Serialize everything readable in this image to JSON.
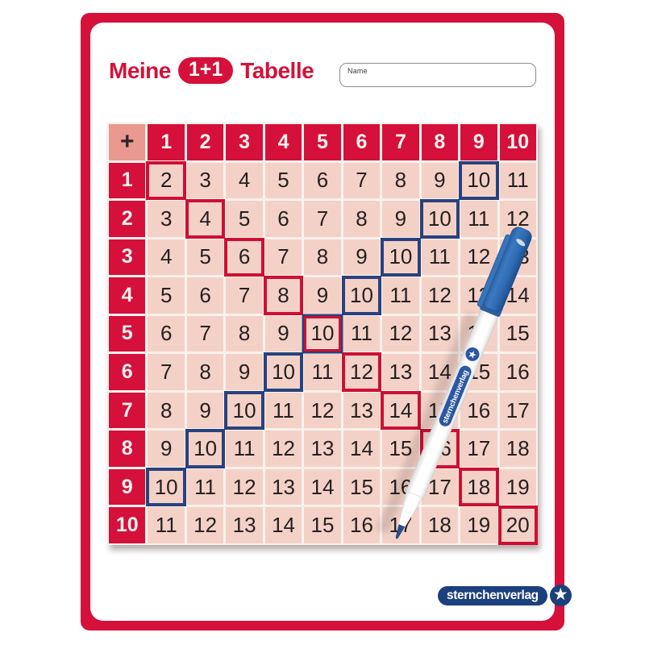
{
  "title": {
    "prefix": "Meine",
    "badge": "1+1",
    "suffix": "Tabelle"
  },
  "name_field": {
    "label": "Name",
    "value": ""
  },
  "table": {
    "operator": "+",
    "col_headers": [
      "1",
      "2",
      "3",
      "4",
      "5",
      "6",
      "7",
      "8",
      "9",
      "10"
    ],
    "row_headers": [
      "1",
      "2",
      "3",
      "4",
      "5",
      "6",
      "7",
      "8",
      "9",
      "10"
    ],
    "rows": [
      [
        2,
        3,
        4,
        5,
        6,
        7,
        8,
        9,
        10,
        11
      ],
      [
        3,
        4,
        5,
        6,
        7,
        8,
        9,
        10,
        11,
        12
      ],
      [
        4,
        5,
        6,
        7,
        8,
        9,
        10,
        11,
        12,
        13
      ],
      [
        5,
        6,
        7,
        8,
        9,
        10,
        11,
        12,
        13,
        14
      ],
      [
        6,
        7,
        8,
        9,
        10,
        11,
        12,
        13,
        14,
        15
      ],
      [
        7,
        8,
        9,
        10,
        11,
        12,
        13,
        14,
        15,
        16
      ],
      [
        8,
        9,
        10,
        11,
        12,
        13,
        14,
        15,
        16,
        17
      ],
      [
        9,
        10,
        11,
        12,
        13,
        14,
        15,
        16,
        17,
        18
      ],
      [
        10,
        11,
        12,
        13,
        14,
        15,
        16,
        17,
        18,
        19
      ],
      [
        11,
        12,
        13,
        14,
        15,
        16,
        17,
        18,
        19,
        20
      ]
    ],
    "red_highlighted_cells": [
      [
        1,
        1
      ],
      [
        2,
        2
      ],
      [
        3,
        3
      ],
      [
        4,
        4
      ],
      [
        5,
        5
      ],
      [
        6,
        6
      ],
      [
        7,
        7
      ],
      [
        8,
        8
      ],
      [
        9,
        9
      ],
      [
        10,
        10
      ]
    ],
    "blue_highlighted_cells": [
      [
        1,
        9
      ],
      [
        2,
        8
      ],
      [
        3,
        7
      ],
      [
        4,
        6
      ],
      [
        5,
        5
      ],
      [
        6,
        4
      ],
      [
        7,
        3
      ],
      [
        8,
        2
      ],
      [
        9,
        1
      ]
    ]
  },
  "branding": {
    "logo_text": "sternchenverlag",
    "star_icon": "★",
    "pen_brand": "sternchenverlag",
    "pen_star_icon": "★"
  },
  "colors": {
    "frame_red": "#d5103a",
    "header_red": "#d5103a",
    "plus_cell": "#e9998f",
    "cell_pink": "#f4d1c6",
    "outline_red": "#ce0f33",
    "outline_blue": "#27427f",
    "logo_navy": "#1c3f7d",
    "pen_blue": "#2f6cb2"
  }
}
